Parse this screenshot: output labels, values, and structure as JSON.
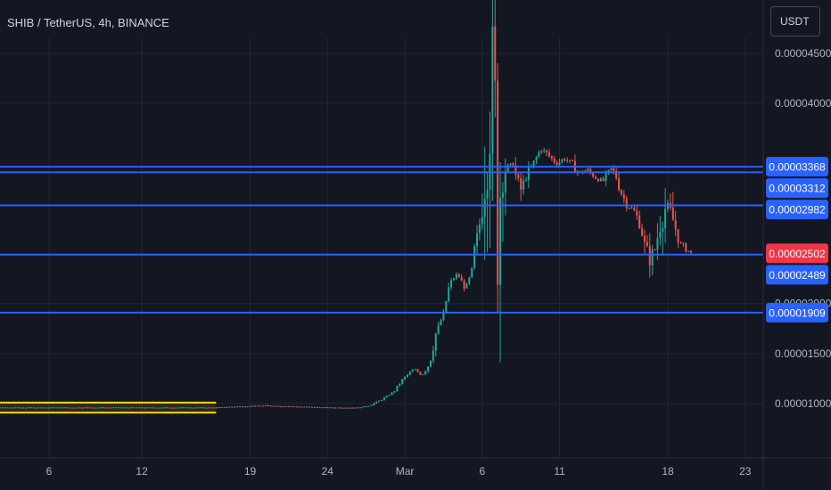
{
  "header": {
    "title": "SHIB / TetherUS, 4h, BINANCE",
    "currency_button": "USDT"
  },
  "colors": {
    "background": "#131722",
    "grid": "#232632",
    "up": "#26a69a",
    "down": "#ef5350",
    "level_line": "#2962ff",
    "level_tag": "#2962ff",
    "price_tag": "#f23645",
    "highlight": "#f5d60a"
  },
  "chart_data": {
    "type": "candlestick",
    "ylim": [
      7.5e-06,
      4.7e-05
    ],
    "y_ticks": [
      {
        "value": 1e-05,
        "label": "0.00001000"
      },
      {
        "value": 1.5e-05,
        "label": "0.00001500"
      },
      {
        "value": 2e-05,
        "label": "0.00002000"
      },
      {
        "value": 4e-05,
        "label": "0.00004000"
      },
      {
        "value": 4.5e-05,
        "label": "0.00004500"
      }
    ],
    "x_ticks": [
      {
        "day": 6,
        "label": "6"
      },
      {
        "day": 12,
        "label": "12"
      },
      {
        "day": 19,
        "label": "19"
      },
      {
        "day": 24,
        "label": "24"
      },
      {
        "day": 29,
        "label": "Mar"
      },
      {
        "day": 34,
        "label": "6"
      },
      {
        "day": 39,
        "label": "11"
      },
      {
        "day": 46,
        "label": "18"
      },
      {
        "day": 51,
        "label": "23"
      }
    ],
    "levels": [
      {
        "value": 3.368e-05,
        "label": "0.00003368"
      },
      {
        "value": 3.312e-05,
        "label": "0.00003312"
      },
      {
        "value": 2.982e-05,
        "label": "0.00002982"
      },
      {
        "value": 2.489e-05,
        "label": "0.00002489"
      },
      {
        "value": 1.909e-05,
        "label": "0.00001909"
      }
    ],
    "current_price": {
      "value": 2.502e-05,
      "label": "0.00002502"
    },
    "highlight_zone": {
      "x_range": [
        0.5,
        16.8
      ],
      "y_range": [
        9.1e-06,
        1.01e-05
      ]
    },
    "price_path": [
      [
        0.5,
        9.6e-06
      ],
      [
        16.8,
        9.6e-06
      ],
      [
        18,
        9.7e-06
      ],
      [
        20,
        9.8e-06
      ],
      [
        22,
        9.7e-06
      ],
      [
        24,
        9.6e-06
      ],
      [
        26,
        9.6e-06
      ],
      [
        26.7,
        9.8e-06
      ],
      [
        27.5,
        1.04e-05
      ],
      [
        28.3,
        1.12e-05
      ],
      [
        28.9,
        1.25e-05
      ],
      [
        29.6,
        1.35e-05
      ],
      [
        30.1,
        1.28e-05
      ],
      [
        30.6,
        1.4e-05
      ],
      [
        31,
        1.7e-05
      ],
      [
        31.5,
        1.9e-05
      ],
      [
        31.9,
        2.2e-05
      ],
      [
        32.4,
        2.3e-05
      ],
      [
        32.9,
        2.15e-05
      ],
      [
        33.3,
        2.3e-05
      ],
      [
        33.6,
        2.6e-05
      ],
      [
        33.9,
        2.85e-05
      ],
      [
        34.2,
        3.45e-05
      ],
      [
        34.4,
        3.9e-05
      ],
      [
        34.55,
        4.4e-05
      ],
      [
        34.7,
        4.2e-05
      ],
      [
        34.85,
        3.7e-05
      ],
      [
        35,
        3e-05
      ],
      [
        35.3,
        3.45e-05
      ],
      [
        35.6,
        3.35e-05
      ],
      [
        36,
        3.4e-05
      ],
      [
        36.4,
        3.1e-05
      ],
      [
        36.8,
        3.25e-05
      ],
      [
        37.3,
        3.4e-05
      ],
      [
        37.8,
        3.55e-05
      ],
      [
        38.3,
        3.48e-05
      ],
      [
        38.8,
        3.4e-05
      ],
      [
        39.3,
        3.45e-05
      ],
      [
        39.8,
        3.4e-05
      ],
      [
        40.3,
        3.3e-05
      ],
      [
        40.8,
        3.34e-05
      ],
      [
        41.3,
        3.26e-05
      ],
      [
        41.8,
        3.22e-05
      ],
      [
        42.3,
        3.35e-05
      ],
      [
        42.6,
        3.3e-05
      ],
      [
        43,
        3.1e-05
      ],
      [
        43.4,
        2.98e-05
      ],
      [
        43.8,
        2.93e-05
      ],
      [
        44.2,
        2.8e-05
      ],
      [
        44.6,
        2.5e-05
      ],
      [
        44.9,
        2.45e-05
      ],
      [
        45.2,
        2.55e-05
      ],
      [
        45.6,
        2.92e-05
      ],
      [
        46,
        2.98e-05
      ],
      [
        46.4,
        2.8e-05
      ],
      [
        46.8,
        2.6e-05
      ],
      [
        47.2,
        2.55e-05
      ],
      [
        47.5,
        2.5e-05
      ]
    ],
    "xlabel": "",
    "ylabel": ""
  }
}
